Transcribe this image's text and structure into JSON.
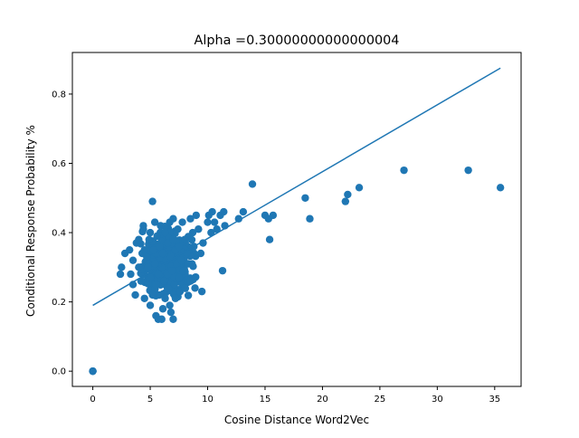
{
  "chart_data": {
    "type": "scatter",
    "title": "Alpha =0.30000000000000004",
    "xlabel": "Cosine Distance Word2Vec",
    "ylabel": "Conditional Response Probability %",
    "xlim": [
      -1.78,
      37.3
    ],
    "ylim": [
      -0.044,
      0.92
    ],
    "xticks": [
      0,
      5,
      10,
      15,
      20,
      25,
      30,
      35
    ],
    "xtick_labels": [
      "0",
      "5",
      "10",
      "15",
      "20",
      "25",
      "30",
      "35"
    ],
    "yticks": [
      0.0,
      0.2,
      0.4,
      0.6,
      0.8
    ],
    "ytick_labels": [
      "0.0",
      "0.2",
      "0.4",
      "0.6",
      "0.8"
    ],
    "grid": false,
    "colors": {
      "series": "#1f77b4",
      "axis": "#000000"
    },
    "series": [
      {
        "kind": "scatter",
        "points": [
          [
            0,
            0.0
          ],
          [
            0,
            0.0
          ],
          [
            0,
            0.0
          ],
          [
            2.4,
            0.28
          ],
          [
            2.5,
            0.3
          ],
          [
            2.8,
            0.34
          ],
          [
            3.2,
            0.35
          ],
          [
            3.3,
            0.28
          ],
          [
            3.5,
            0.32
          ],
          [
            3.5,
            0.25
          ],
          [
            3.7,
            0.22
          ],
          [
            3.8,
            0.37
          ],
          [
            4.0,
            0.38
          ],
          [
            4.0,
            0.3
          ],
          [
            4.2,
            0.26
          ],
          [
            4.3,
            0.34
          ],
          [
            4.4,
            0.42
          ],
          [
            4.4,
            0.41
          ],
          [
            4.5,
            0.35
          ],
          [
            4.5,
            0.21
          ],
          [
            4.7,
            0.33
          ],
          [
            4.8,
            0.3
          ],
          [
            4.9,
            0.38
          ],
          [
            5.0,
            0.4
          ],
          [
            5.0,
            0.19
          ],
          [
            5.0,
            0.27
          ],
          [
            5.2,
            0.49
          ],
          [
            5.2,
            0.22
          ],
          [
            5.3,
            0.35
          ],
          [
            5.4,
            0.43
          ],
          [
            5.4,
            0.31
          ],
          [
            5.5,
            0.16
          ],
          [
            5.5,
            0.25
          ],
          [
            5.6,
            0.39
          ],
          [
            5.7,
            0.28
          ],
          [
            5.7,
            0.15
          ],
          [
            5.8,
            0.36
          ],
          [
            5.8,
            0.22
          ],
          [
            5.9,
            0.42
          ],
          [
            6.0,
            0.3
          ],
          [
            6.0,
            0.15
          ],
          [
            6.1,
            0.34
          ],
          [
            6.1,
            0.18
          ],
          [
            6.2,
            0.26
          ],
          [
            6.3,
            0.4
          ],
          [
            6.3,
            0.21
          ],
          [
            6.4,
            0.32
          ],
          [
            6.5,
            0.37
          ],
          [
            6.5,
            0.28
          ],
          [
            6.6,
            0.24
          ],
          [
            6.7,
            0.19
          ],
          [
            6.7,
            0.43
          ],
          [
            6.8,
            0.33
          ],
          [
            6.8,
            0.17
          ],
          [
            6.9,
            0.29
          ],
          [
            7.0,
            0.38
          ],
          [
            7.0,
            0.15
          ],
          [
            7.0,
            0.44
          ],
          [
            7.1,
            0.25
          ],
          [
            7.2,
            0.35
          ],
          [
            7.2,
            0.21
          ],
          [
            7.3,
            0.31
          ],
          [
            7.4,
            0.41
          ],
          [
            7.5,
            0.27
          ],
          [
            7.5,
            0.36
          ],
          [
            7.6,
            0.23
          ],
          [
            7.7,
            0.32
          ],
          [
            7.8,
            0.43
          ],
          [
            7.9,
            0.29
          ],
          [
            8.0,
            0.38
          ],
          [
            8.0,
            0.24
          ],
          [
            8.2,
            0.34
          ],
          [
            8.3,
            0.31
          ],
          [
            8.5,
            0.44
          ],
          [
            8.5,
            0.26
          ],
          [
            8.7,
            0.4
          ],
          [
            8.8,
            0.36
          ],
          [
            8.9,
            0.24
          ],
          [
            9.0,
            0.45
          ],
          [
            9.2,
            0.41
          ],
          [
            9.4,
            0.34
          ],
          [
            9.5,
            0.23
          ],
          [
            9.6,
            0.37
          ],
          [
            10.0,
            0.43
          ],
          [
            10.1,
            0.45
          ],
          [
            10.3,
            0.4
          ],
          [
            10.4,
            0.46
          ],
          [
            10.6,
            0.43
          ],
          [
            10.8,
            0.41
          ],
          [
            11.1,
            0.45
          ],
          [
            11.3,
            0.29
          ],
          [
            11.4,
            0.46
          ],
          [
            11.5,
            0.42
          ],
          [
            12.7,
            0.44
          ],
          [
            13.1,
            0.46
          ],
          [
            13.9,
            0.54
          ],
          [
            15.0,
            0.45
          ],
          [
            15.3,
            0.44
          ],
          [
            15.4,
            0.38
          ],
          [
            15.7,
            0.45
          ],
          [
            18.5,
            0.5
          ],
          [
            18.9,
            0.44
          ],
          [
            22.0,
            0.49
          ],
          [
            22.2,
            0.51
          ],
          [
            23.2,
            0.53
          ],
          [
            27.1,
            0.58
          ],
          [
            32.7,
            0.58
          ],
          [
            35.5,
            0.53
          ]
        ],
        "cluster": {
          "x_center": 6.6,
          "x_spread": 1.7,
          "y_center": 0.315,
          "y_spread": 0.065,
          "count": 450,
          "seed": 11
        }
      },
      {
        "kind": "line",
        "points": [
          [
            0,
            0.19
          ],
          [
            35.5,
            0.875
          ]
        ]
      }
    ]
  }
}
